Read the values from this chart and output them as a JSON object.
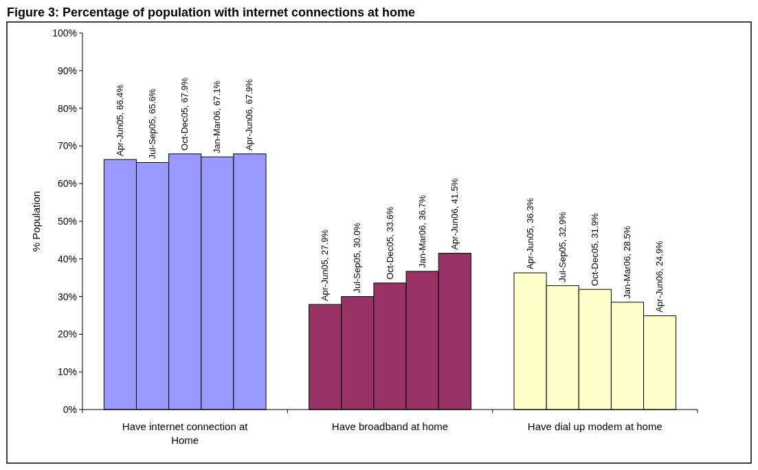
{
  "chart_data": {
    "type": "bar",
    "title": "Figure 3: Percentage of population with internet connections at home",
    "ylabel": "% Population",
    "categories": [
      "Have internet connection at Home",
      "Have broadband at home",
      "Have dial up modem at home"
    ],
    "ylim": [
      0,
      100
    ],
    "yticks": [
      {
        "value": 0,
        "label": "0%"
      },
      {
        "value": 10,
        "label": "10%"
      },
      {
        "value": 20,
        "label": "20%"
      },
      {
        "value": 30,
        "label": "30%"
      },
      {
        "value": 40,
        "label": "40%"
      },
      {
        "value": 50,
        "label": "50%"
      },
      {
        "value": 60,
        "label": "60%"
      },
      {
        "value": 70,
        "label": "70%"
      },
      {
        "value": 80,
        "label": "80%"
      },
      {
        "value": 90,
        "label": "90%"
      },
      {
        "value": 100,
        "label": "100%"
      }
    ],
    "grid": false,
    "series": [
      {
        "colors": [
          "#9999ff",
          "#993366",
          "#ffffcc"
        ],
        "values": [
          66.4,
          27.9,
          36.3
        ],
        "value_labels": [
          "Apr-Jun05, 66.4%",
          "Apr-Jun05, 27.9%",
          "Apr-Jun05, 36.3%"
        ]
      },
      {
        "colors": [
          "#9999ff",
          "#993366",
          "#ffffcc"
        ],
        "values": [
          65.6,
          30.0,
          32.9
        ],
        "value_labels": [
          "Jul-Sep05, 65.6%",
          "Jul-Sep05, 30.0%",
          "Jul-Sep05, 32.9%"
        ]
      },
      {
        "colors": [
          "#9999ff",
          "#993366",
          "#ffffcc"
        ],
        "values": [
          67.9,
          33.6,
          31.9
        ],
        "value_labels": [
          "Oct-Dec05, 67.9%",
          "Oct-Dec05, 33.6%",
          "Oct-Dec05, 31.9%"
        ]
      },
      {
        "colors": [
          "#9999ff",
          "#993366",
          "#ffffcc"
        ],
        "values": [
          67.1,
          36.7,
          28.5
        ],
        "value_labels": [
          "Jan-Mar06, 67.1%",
          "Jan-Mar06, 36.7%",
          "Jan-Mar06, 28.5%"
        ]
      },
      {
        "colors": [
          "#9999ff",
          "#993366",
          "#ffffcc"
        ],
        "values": [
          67.9,
          41.5,
          24.9
        ],
        "value_labels": [
          "Apr-Jun06, 67.9%",
          "Apr-Jun06, 41.5%",
          "Apr-Jun06, 24.9%"
        ]
      }
    ]
  }
}
